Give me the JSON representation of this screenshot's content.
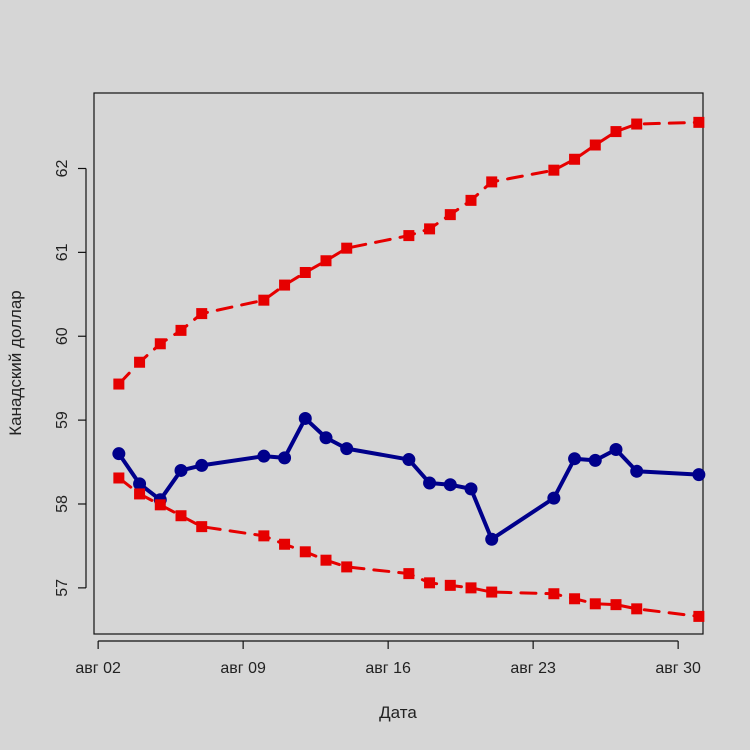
{
  "chart_data": {
    "type": "line",
    "title": "",
    "xlabel": "Дата",
    "ylabel": "Канадский доллар",
    "xlim": [
      "2023-08-02",
      "2023-08-31"
    ],
    "ylim": [
      56.45,
      62.9
    ],
    "x_ticks": [
      {
        "date": "2023-08-02",
        "label": "авг 02"
      },
      {
        "date": "2023-08-09",
        "label": "авг 09"
      },
      {
        "date": "2023-08-16",
        "label": "авг 16"
      },
      {
        "date": "2023-08-23",
        "label": "авг 23"
      },
      {
        "date": "2023-08-30",
        "label": "авг 30"
      }
    ],
    "y_ticks": [
      57,
      58,
      59,
      60,
      61,
      62
    ],
    "grid": false,
    "series": [
      {
        "color": "#00008b",
        "line_style": "solid",
        "marker": "circle",
        "points": [
          {
            "x": "2023-08-03",
            "y": 58.6
          },
          {
            "x": "2023-08-04",
            "y": 58.24
          },
          {
            "x": "2023-08-05",
            "y": 58.05
          },
          {
            "x": "2023-08-06",
            "y": 58.4
          },
          {
            "x": "2023-08-07",
            "y": 58.46
          },
          {
            "x": "2023-08-10",
            "y": 58.57
          },
          {
            "x": "2023-08-11",
            "y": 58.55
          },
          {
            "x": "2023-08-12",
            "y": 59.02
          },
          {
            "x": "2023-08-13",
            "y": 58.79
          },
          {
            "x": "2023-08-14",
            "y": 58.66
          },
          {
            "x": "2023-08-17",
            "y": 58.53
          },
          {
            "x": "2023-08-18",
            "y": 58.25
          },
          {
            "x": "2023-08-19",
            "y": 58.23
          },
          {
            "x": "2023-08-20",
            "y": 58.18
          },
          {
            "x": "2023-08-21",
            "y": 57.58
          },
          {
            "x": "2023-08-24",
            "y": 58.07
          },
          {
            "x": "2023-08-25",
            "y": 58.54
          },
          {
            "x": "2023-08-26",
            "y": 58.52
          },
          {
            "x": "2023-08-27",
            "y": 58.65
          },
          {
            "x": "2023-08-28",
            "y": 58.39
          },
          {
            "x": "2023-08-31",
            "y": 58.35
          }
        ]
      },
      {
        "color": "#e60000",
        "line_style": "dashed",
        "marker": "square",
        "points": [
          {
            "x": "2023-08-03",
            "y": 59.43
          },
          {
            "x": "2023-08-04",
            "y": 59.69
          },
          {
            "x": "2023-08-05",
            "y": 59.91
          },
          {
            "x": "2023-08-06",
            "y": 60.07
          },
          {
            "x": "2023-08-07",
            "y": 60.27
          },
          {
            "x": "2023-08-10",
            "y": 60.43
          },
          {
            "x": "2023-08-11",
            "y": 60.61
          },
          {
            "x": "2023-08-12",
            "y": 60.76
          },
          {
            "x": "2023-08-13",
            "y": 60.9
          },
          {
            "x": "2023-08-14",
            "y": 61.05
          },
          {
            "x": "2023-08-17",
            "y": 61.2
          },
          {
            "x": "2023-08-18",
            "y": 61.28
          },
          {
            "x": "2023-08-19",
            "y": 61.45
          },
          {
            "x": "2023-08-20",
            "y": 61.62
          },
          {
            "x": "2023-08-21",
            "y": 61.84
          },
          {
            "x": "2023-08-24",
            "y": 61.98
          },
          {
            "x": "2023-08-25",
            "y": 62.11
          },
          {
            "x": "2023-08-26",
            "y": 62.28
          },
          {
            "x": "2023-08-27",
            "y": 62.44
          },
          {
            "x": "2023-08-28",
            "y": 62.53
          },
          {
            "x": "2023-08-31",
            "y": 62.55
          }
        ]
      },
      {
        "color": "#e60000",
        "line_style": "dashed",
        "marker": "square",
        "points": [
          {
            "x": "2023-08-03",
            "y": 58.31
          },
          {
            "x": "2023-08-04",
            "y": 58.12
          },
          {
            "x": "2023-08-05",
            "y": 57.99
          },
          {
            "x": "2023-08-06",
            "y": 57.86
          },
          {
            "x": "2023-08-07",
            "y": 57.73
          },
          {
            "x": "2023-08-10",
            "y": 57.62
          },
          {
            "x": "2023-08-11",
            "y": 57.52
          },
          {
            "x": "2023-08-12",
            "y": 57.43
          },
          {
            "x": "2023-08-13",
            "y": 57.33
          },
          {
            "x": "2023-08-14",
            "y": 57.25
          },
          {
            "x": "2023-08-17",
            "y": 57.17
          },
          {
            "x": "2023-08-18",
            "y": 57.06
          },
          {
            "x": "2023-08-19",
            "y": 57.03
          },
          {
            "x": "2023-08-20",
            "y": 57.0
          },
          {
            "x": "2023-08-21",
            "y": 56.95
          },
          {
            "x": "2023-08-24",
            "y": 56.93
          },
          {
            "x": "2023-08-25",
            "y": 56.87
          },
          {
            "x": "2023-08-26",
            "y": 56.81
          },
          {
            "x": "2023-08-27",
            "y": 56.8
          },
          {
            "x": "2023-08-28",
            "y": 56.75
          },
          {
            "x": "2023-08-31",
            "y": 56.66
          }
        ]
      }
    ]
  }
}
